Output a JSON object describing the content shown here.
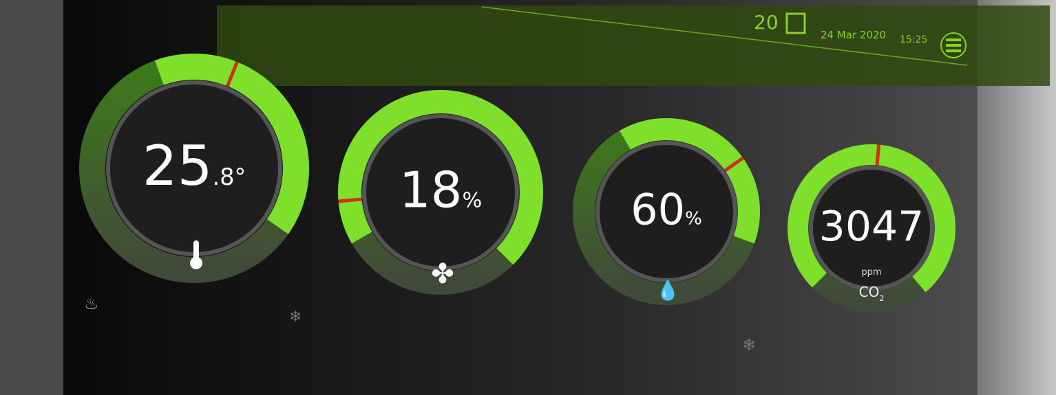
{
  "header": {
    "count": "20",
    "date": "24 Mar 2020",
    "time": "15:25"
  },
  "gauges": [
    {
      "value": "25",
      "unit": ".8°"
    },
    {
      "value": "18",
      "unit": "%"
    },
    {
      "value": "60",
      "unit": "%"
    },
    {
      "value": "3047",
      "unit": "ppm",
      "label": "CO",
      "subscript": "2"
    }
  ]
}
